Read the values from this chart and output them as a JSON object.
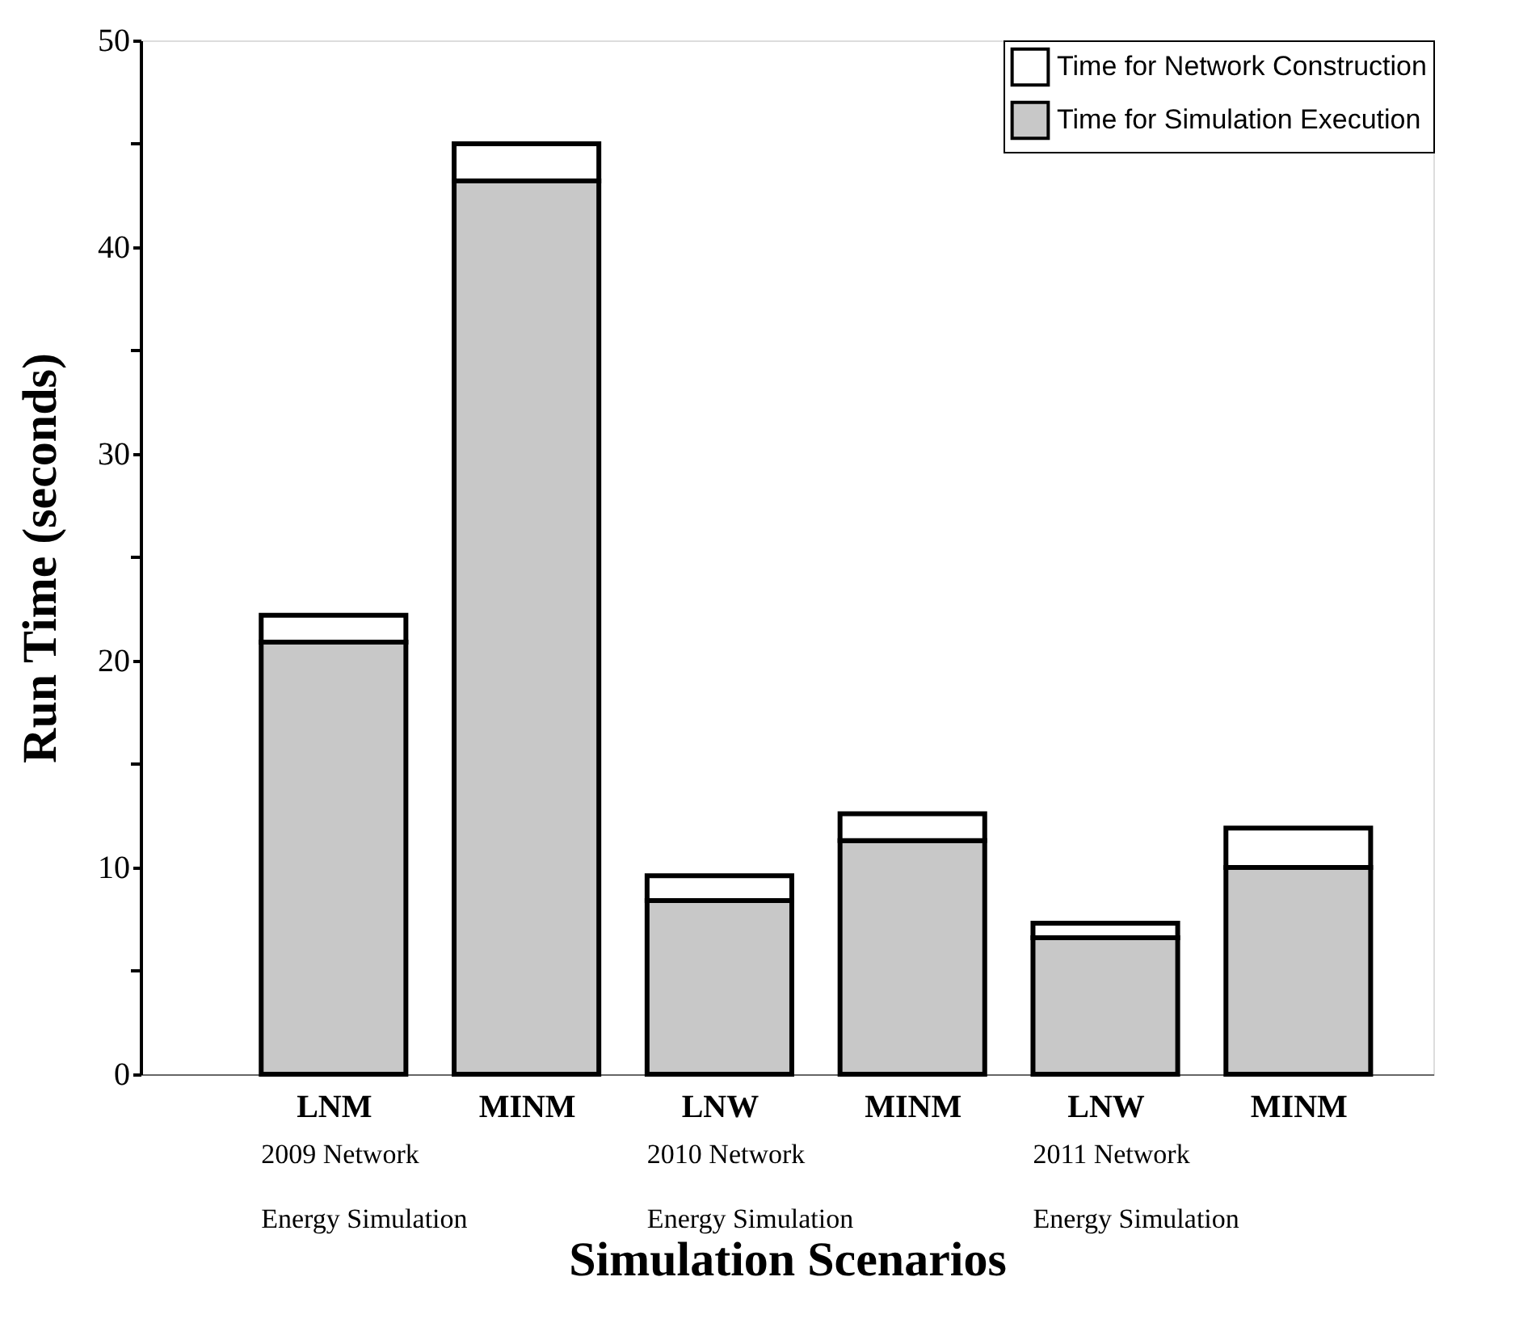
{
  "chart_data": {
    "type": "bar",
    "stacked": true,
    "categories": [
      "LNM",
      "MINM",
      "LNW",
      "MINM",
      "LNW",
      "MINM"
    ],
    "series": [
      {
        "name": "Time for Simulation Execution",
        "color": "#c8c8c8",
        "values": [
          20.9,
          43.2,
          8.4,
          11.3,
          6.6,
          10.0
        ]
      },
      {
        "name": "Time for Network Construction",
        "color": "#ffffff",
        "values": [
          1.3,
          1.8,
          1.2,
          1.3,
          0.7,
          1.9
        ]
      }
    ],
    "ylim": [
      0,
      50
    ],
    "yticks": [
      0,
      {
        "value": 5,
        "label": null
      },
      10,
      {
        "value": 15,
        "label": null
      },
      20,
      {
        "value": 25,
        "label": null
      },
      30,
      {
        "value": 35,
        "label": null
      },
      40,
      {
        "value": 45,
        "label": null
      },
      50
    ],
    "xlabel": "Simulation Scenarios",
    "ylabel": "Run Time (seconds)",
    "annotations": [
      "2009 Network\nEnergy Simulation",
      "2010 Network\nEnergy Simulation",
      "2011 Network\nEnergy Simulation"
    ],
    "legend": "top right",
    "grid": false
  }
}
